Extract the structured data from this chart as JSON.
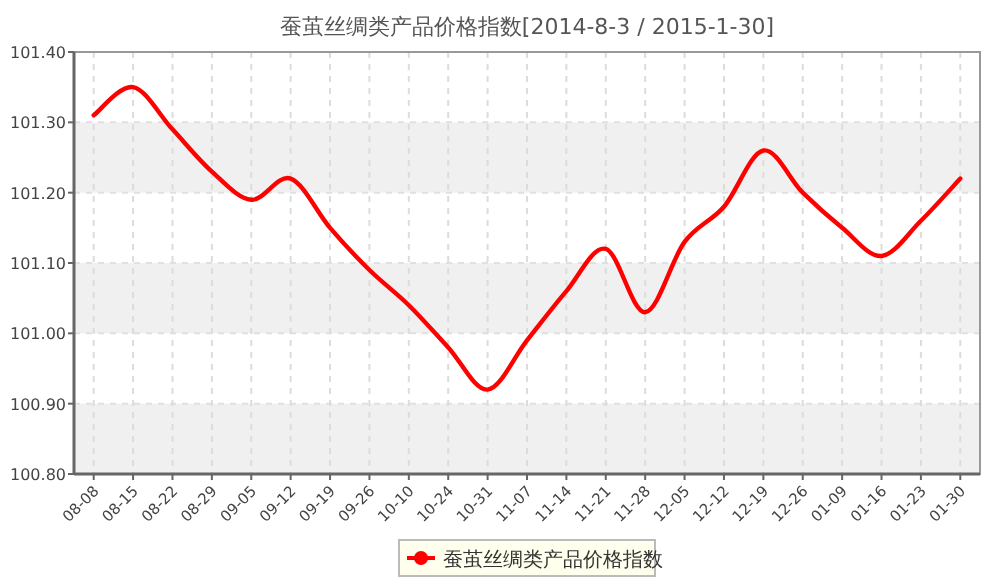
{
  "chart_data": {
    "type": "line",
    "title": "蚕茧丝绸类产品价格指数[2014-8-3 / 2015-1-30]",
    "categories": [
      "08-08",
      "08-15",
      "08-22",
      "08-29",
      "09-05",
      "09-12",
      "09-19",
      "09-26",
      "10-10",
      "10-24",
      "10-31",
      "11-07",
      "11-14",
      "11-21",
      "11-28",
      "12-05",
      "12-12",
      "12-19",
      "12-26",
      "01-09",
      "01-16",
      "01-23",
      "01-30"
    ],
    "series": [
      {
        "name": "蚕茧丝绸类产品价格指数",
        "color": "#ff0000",
        "values": [
          101.31,
          101.35,
          101.29,
          101.23,
          101.19,
          101.22,
          101.15,
          101.09,
          101.04,
          100.98,
          100.92,
          100.99,
          101.06,
          101.12,
          101.03,
          101.13,
          101.18,
          101.26,
          101.2,
          101.15,
          101.11,
          101.16,
          101.22
        ]
      }
    ],
    "ylim": [
      100.8,
      101.4
    ],
    "yticks": [
      {
        "value": 100.8,
        "label": "100.80"
      },
      {
        "value": 100.9,
        "label": "100.90"
      },
      {
        "value": 101.0,
        "label": "101.00"
      },
      {
        "value": 101.1,
        "label": "101.10"
      },
      {
        "value": 101.2,
        "label": "101.20"
      },
      {
        "value": 101.3,
        "label": "101.30"
      },
      {
        "value": 101.4,
        "label": "101.40"
      }
    ],
    "grid": true,
    "legend": "bottom"
  }
}
